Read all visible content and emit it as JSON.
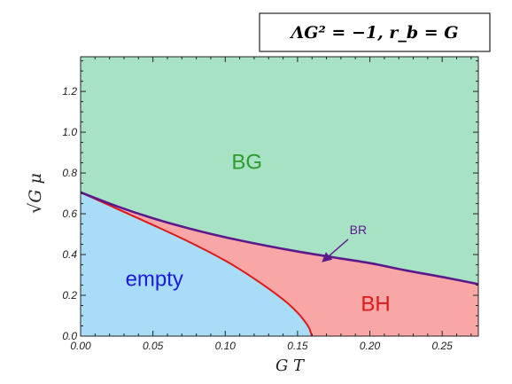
{
  "chart_data": {
    "type": "area",
    "parameters_text": "ΛG² = −1,   r_b = G",
    "xlabel": "G T",
    "ylabel": "√G μ",
    "xlim": [
      0,
      0.275
    ],
    "ylim": [
      0,
      1.37
    ],
    "x_ticks": [
      "0.00",
      "0.05",
      "0.10",
      "0.15",
      "0.20",
      "0.25"
    ],
    "y_ticks": [
      "0.0",
      "0.2",
      "0.4",
      "0.6",
      "0.8",
      "1.0",
      "1.2"
    ],
    "grid": false,
    "regions": [
      {
        "label": "BG",
        "color": "#a8e2c4",
        "text_color": "#2e9b2e"
      },
      {
        "label": "empty",
        "color": "#a9dcf6",
        "text_color": "#1a1ae0"
      },
      {
        "label": "BH",
        "color": "#f9a6a6",
        "text_color": "#e01818"
      }
    ],
    "series": [
      {
        "name": "BR",
        "color": "#5b1a8c",
        "x": [
          0,
          0.025,
          0.05,
          0.075,
          0.1,
          0.125,
          0.15,
          0.175,
          0.2,
          0.225,
          0.25,
          0.275
        ],
        "y": [
          0.705,
          0.637,
          0.578,
          0.528,
          0.485,
          0.448,
          0.415,
          0.386,
          0.358,
          0.322,
          0.29,
          0.255
        ]
      },
      {
        "name": "",
        "color": "#e01818",
        "x": [
          0,
          0.025,
          0.05,
          0.075,
          0.1,
          0.12,
          0.14,
          0.15,
          0.155,
          0.158,
          0.159,
          0.16
        ],
        "y": [
          0.705,
          0.625,
          0.545,
          0.462,
          0.37,
          0.282,
          0.18,
          0.115,
          0.072,
          0.04,
          0.02,
          0.0
        ]
      }
    ],
    "annotations": [
      {
        "text": "BR",
        "color": "#5b1a8c",
        "arrow_to": [
          0.168,
          0.37
        ]
      }
    ]
  }
}
